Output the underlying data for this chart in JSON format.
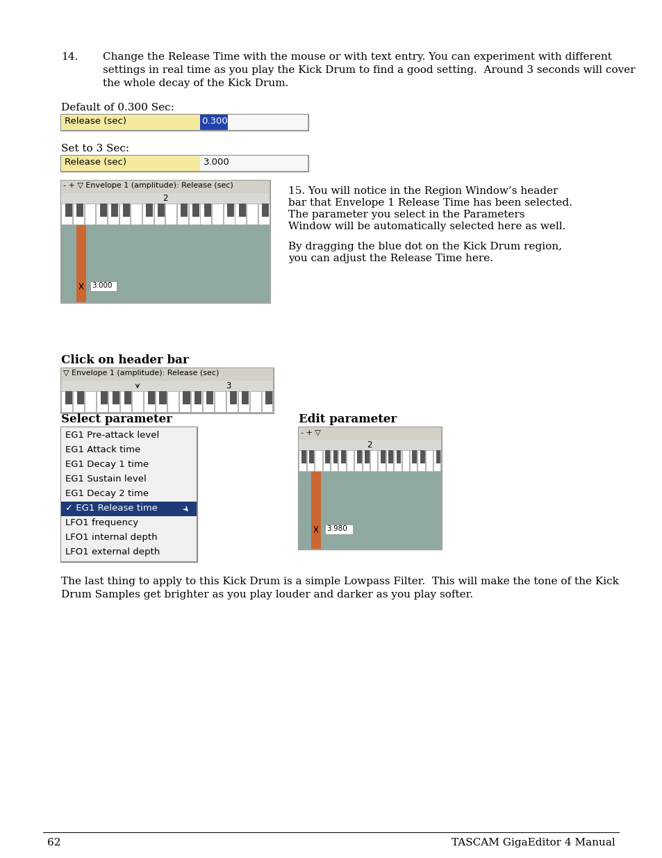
{
  "page_bg": "#ffffff",
  "text_color": "#000000",
  "page_number": "62",
  "manual_title": "TASCAM GigaEditor 4 Manual",
  "item14_num": "14.",
  "item14_line1": "Change the Release Time with the mouse or with text entry. You can experiment with different",
  "item14_line2": "settings in real time as you play the Kick Drum to find a good setting.  Around 3 seconds will cover",
  "item14_line3": "the whole decay of the Kick Drum.",
  "default_label": "Default of 0.300 Sec:",
  "release_label1": "Release (sec)",
  "release_val1": "0.300",
  "set3_label": "Set to 3 Sec:",
  "release_label2": "Release (sec)",
  "release_val2": "3.000",
  "envelope_header": "- + ▽ Envelope 1 (amplitude): Release (sec)",
  "piano_num_top": "2",
  "text15_line1": "15. You will notice in the Region Window’s header",
  "text15_line2": "bar that Envelope 1 Release Time has been selected.",
  "text15_line3": "The parameter you select in the Parameters",
  "text15_line4": "Window will be automatically selected here as well.",
  "text15b_line1": "By dragging the blue dot on the Kick Drum region,",
  "text15b_line2": "you can adjust the Release Time here.",
  "click_header_label": "Click on header bar",
  "header_bar_text": "▽ Envelope 1 (amplitude): Release (sec)",
  "header_num": "3",
  "select_param_label": "Select parameter",
  "menu_items": [
    "EG1 Pre-attack level",
    "EG1 Attack time",
    "EG1 Decay 1 time",
    "EG1 Sustain level",
    "EG1 Decay 2 time",
    "✓ EG1 Release time",
    "LFO1 frequency",
    "LFO1 internal depth",
    "LFO1 external depth"
  ],
  "menu_selected_idx": 5,
  "menu_selected_bg": "#1e3a78",
  "menu_selected_fg": "#ffffff",
  "menu_bg": "#ffffff",
  "menu_item_fg": "#000000",
  "edit_param_label": "Edit parameter",
  "edit_piano_num": "2",
  "edit_value": "3.980",
  "last_line1": "The last thing to apply to this Kick Drum is a simple Lowpass Filter.  This will make the tone of the Kick",
  "last_line2": "Drum Samples get brighter as you play louder and darker as you play softer.",
  "field_bg_yellow": "#f5e9a0",
  "field_val_selected_bg": "#2244aa",
  "field_val_selected_fg": "#ffffff",
  "field_bg_white": "#f8f8f8",
  "region_bg": "#8fa8a0",
  "orange_bar": "#cc6633",
  "header_bg": "#d4d0c8",
  "piano_area_bg": "#c8c8c4",
  "panel_border": "#999999"
}
